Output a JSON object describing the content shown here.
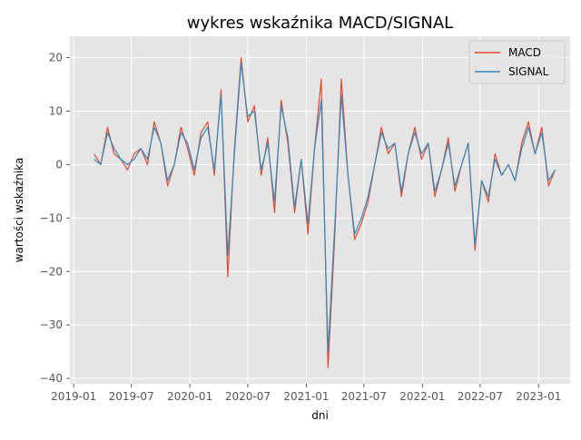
{
  "chart_data": {
    "type": "line",
    "title": "wykres wskaźnika MACD/SIGNAL",
    "xlabel": "dni",
    "ylabel": "wartości wskaźnika",
    "xlim": [
      "2018-12-20",
      "2023-04-10"
    ],
    "ylim": [
      -41,
      24
    ],
    "grid": true,
    "legend_position": "top-right",
    "x_ticks": [
      "2019-01",
      "2019-07",
      "2020-01",
      "2020-07",
      "2021-01",
      "2021-07",
      "2022-01",
      "2022-07",
      "2023-01"
    ],
    "y_ticks": [
      -40,
      -30,
      -20,
      -10,
      0,
      10,
      20
    ],
    "x": [
      "2019-03-06",
      "2019-03-27",
      "2019-04-17",
      "2019-05-08",
      "2019-05-29",
      "2019-06-19",
      "2019-07-10",
      "2019-07-31",
      "2019-08-21",
      "2019-09-11",
      "2019-10-02",
      "2019-10-23",
      "2019-11-13",
      "2019-12-04",
      "2019-12-25",
      "2020-01-15",
      "2020-02-05",
      "2020-02-26",
      "2020-03-18",
      "2020-04-08",
      "2020-04-29",
      "2020-05-20",
      "2020-06-10",
      "2020-07-01",
      "2020-07-22",
      "2020-08-12",
      "2020-09-02",
      "2020-09-23",
      "2020-10-14",
      "2020-11-04",
      "2020-11-25",
      "2020-12-16",
      "2021-01-06",
      "2021-01-27",
      "2021-02-17",
      "2021-03-10",
      "2021-03-31",
      "2021-04-21",
      "2021-05-12",
      "2021-06-02",
      "2021-06-23",
      "2021-07-14",
      "2021-08-04",
      "2021-08-25",
      "2021-09-15",
      "2021-10-06",
      "2021-10-27",
      "2021-11-17",
      "2021-12-08",
      "2021-12-29",
      "2022-01-19",
      "2022-02-09",
      "2022-03-02",
      "2022-03-23",
      "2022-04-13",
      "2022-05-04",
      "2022-05-25",
      "2022-06-15",
      "2022-07-06",
      "2022-07-27",
      "2022-08-17",
      "2022-09-07",
      "2022-09-28",
      "2022-10-19",
      "2022-11-09",
      "2022-11-30",
      "2022-12-21",
      "2023-01-11",
      "2023-02-01",
      "2023-02-22"
    ],
    "series": [
      {
        "name": "MACD",
        "color": "#e24a33",
        "values": [
          2,
          0,
          7,
          2,
          1,
          -1,
          2,
          3,
          0,
          8,
          4,
          -4,
          0,
          7,
          3,
          -2,
          6,
          8,
          -2,
          14,
          -21,
          3,
          20,
          8,
          11,
          -2,
          5,
          -9,
          12,
          4,
          -9,
          1,
          -13,
          3,
          16,
          -38,
          -14,
          16,
          -2,
          -14,
          -11,
          -7,
          0,
          7,
          2,
          4,
          -6,
          2,
          7,
          1,
          4,
          -6,
          -1,
          5,
          -5,
          0,
          4,
          -16,
          -3,
          -7,
          2,
          -2,
          0,
          -3,
          4,
          8,
          2,
          7,
          -4,
          -1
        ]
      },
      {
        "name": "SIGNAL",
        "color": "#348abd",
        "values": [
          1,
          0,
          6,
          3,
          1,
          0,
          1,
          3,
          1,
          7,
          4,
          -3,
          0,
          6,
          4,
          -1,
          5,
          7,
          -1,
          13,
          -17,
          2,
          19,
          9,
          10,
          -1,
          4,
          -7,
          11,
          5,
          -8,
          1,
          -11,
          3,
          12,
          -35,
          -12,
          13,
          -2,
          -13,
          -10,
          -6,
          0,
          6,
          3,
          4,
          -5,
          2,
          6,
          2,
          4,
          -5,
          -1,
          4,
          -4,
          0,
          4,
          -15,
          -3,
          -6,
          1,
          -2,
          0,
          -3,
          3,
          7,
          2,
          6,
          -3,
          -1
        ]
      }
    ]
  }
}
